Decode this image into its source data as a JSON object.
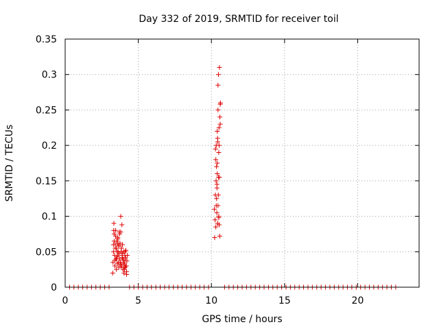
{
  "chart_data": {
    "type": "scatter",
    "title": "Day 332 of 2019, SRMTID for receiver toil",
    "xlabel": "GPS time / hours",
    "ylabel": "SRMTID / TECUs",
    "xlim": [
      0,
      24.2
    ],
    "ylim": [
      0,
      0.35
    ],
    "xticks": [
      0,
      5,
      10,
      15,
      20
    ],
    "xtick_labels": [
      "0",
      "5",
      "10",
      "15",
      "20"
    ],
    "yticks": [
      0,
      0.05,
      0.1,
      0.15,
      0.2,
      0.25,
      0.3,
      0.35
    ],
    "ytick_labels": [
      "0",
      "0.05",
      "0.1",
      "0.15",
      "0.2",
      "0.25",
      "0.3",
      "0.35"
    ],
    "grid": true,
    "marker": "+",
    "color": "#dd0000",
    "series": [
      {
        "name": "SRMTID",
        "x": [
          3.25,
          3.27,
          3.3,
          3.33,
          3.35,
          3.38,
          3.4,
          3.42,
          3.45,
          3.47,
          3.5,
          3.52,
          3.55,
          3.57,
          3.6,
          3.62,
          3.65,
          3.67,
          3.7,
          3.72,
          3.75,
          3.78,
          3.8,
          3.82,
          3.85,
          3.88,
          3.9,
          3.92,
          3.95,
          3.98,
          4.0,
          4.02,
          4.05,
          4.08,
          4.1,
          4.12,
          4.15,
          4.18,
          4.2,
          4.22,
          4.25,
          3.3,
          3.35,
          3.4,
          3.45,
          3.5,
          3.55,
          3.6,
          3.65,
          3.7,
          3.75,
          3.8,
          3.85,
          3.9,
          3.95,
          4.0,
          4.05,
          4.1,
          4.15,
          4.2,
          3.32,
          3.42,
          3.52,
          3.62,
          3.72,
          3.82,
          3.92,
          4.02,
          4.12,
          3.6,
          3.8,
          10.2,
          10.22,
          10.25,
          10.27,
          10.3,
          10.32,
          10.33,
          10.35,
          10.37,
          10.38,
          10.4,
          10.4,
          10.42,
          10.42,
          10.45,
          10.45,
          10.47,
          10.48,
          10.5,
          10.5,
          10.52,
          10.53,
          10.55,
          10.55,
          10.57,
          10.58,
          10.6,
          10.6,
          10.62,
          10.3,
          10.35,
          10.4,
          10.45,
          10.5,
          10.28,
          10.33,
          10.38,
          10.43,
          10.48,
          10.53
        ],
        "y": [
          0.02,
          0.035,
          0.06,
          0.09,
          0.075,
          0.045,
          0.03,
          0.055,
          0.08,
          0.04,
          0.025,
          0.065,
          0.05,
          0.033,
          0.07,
          0.045,
          0.058,
          0.028,
          0.078,
          0.04,
          0.062,
          0.035,
          0.1,
          0.05,
          0.03,
          0.088,
          0.042,
          0.06,
          0.025,
          0.038,
          0.05,
          0.02,
          0.033,
          0.045,
          0.028,
          0.04,
          0.052,
          0.03,
          0.018,
          0.037,
          0.045,
          0.05,
          0.065,
          0.038,
          0.072,
          0.055,
          0.043,
          0.068,
          0.035,
          0.048,
          0.06,
          0.03,
          0.055,
          0.045,
          0.04,
          0.035,
          0.025,
          0.05,
          0.03,
          0.022,
          0.08,
          0.06,
          0.04,
          0.05,
          0.075,
          0.032,
          0.048,
          0.028,
          0.042,
          0.062,
          0.078,
          0.11,
          0.07,
          0.095,
          0.13,
          0.085,
          0.15,
          0.2,
          0.17,
          0.105,
          0.14,
          0.16,
          0.22,
          0.09,
          0.21,
          0.115,
          0.25,
          0.13,
          0.3,
          0.1,
          0.19,
          0.225,
          0.2,
          0.31,
          0.155,
          0.072,
          0.24,
          0.23,
          0.258,
          0.26,
          0.18,
          0.125,
          0.175,
          0.285,
          0.098,
          0.195,
          0.115,
          0.145,
          0.205,
          0.155,
          0.088
        ],
        "zero_x": [
          0.3,
          0.6,
          0.9,
          1.2,
          1.5,
          1.8,
          2.1,
          2.4,
          2.7,
          3.0,
          4.4,
          4.7,
          5.0,
          5.3,
          5.6,
          5.9,
          6.2,
          6.5,
          6.8,
          7.1,
          7.4,
          7.7,
          8.0,
          8.3,
          8.6,
          8.9,
          9.2,
          9.5,
          9.8,
          10.9,
          11.2,
          11.5,
          11.8,
          12.1,
          12.4,
          12.7,
          13.0,
          13.3,
          13.6,
          13.9,
          14.2,
          14.5,
          14.8,
          15.1,
          15.4,
          15.7,
          16.0,
          16.3,
          16.6,
          16.9,
          17.2,
          17.5,
          17.8,
          18.1,
          18.4,
          18.7,
          19.0,
          19.3,
          19.6,
          19.9,
          20.2,
          20.5,
          20.8,
          21.1,
          21.4,
          21.7,
          22.0,
          22.3,
          22.6
        ]
      }
    ]
  }
}
